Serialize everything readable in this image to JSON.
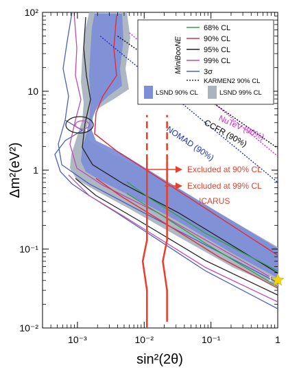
{
  "chart_data": {
    "type": "line",
    "xscale": "log",
    "yscale": "log",
    "xlim": [
      0.0003,
      1
    ],
    "ylim": [
      0.01,
      100
    ],
    "xlabel": "sin²(2θ)",
    "ylabel": "Δm²(eV²)",
    "x_ticks": [
      "10⁻³",
      "10⁻²",
      "10⁻¹",
      "1"
    ],
    "y_ticks": [
      "10⁻²",
      "10⁻¹",
      "1",
      "10",
      "10²"
    ],
    "legend": {
      "group_label": "MiniBooNE",
      "entries": [
        {
          "label": "68% CL",
          "color": "#2e9e4a"
        },
        {
          "label": "90% CL",
          "color": "#d6334a"
        },
        {
          "label": "95% CL",
          "color": "#222222"
        },
        {
          "label": "99% CL",
          "color": "#c04aa8"
        },
        {
          "label": "3σ",
          "color": "#4a5fc0"
        },
        {
          "label": "KARMEN2 90% CL",
          "color": "#000000",
          "dashed": true
        }
      ],
      "boxes": [
        {
          "label": "LSND 90% CL",
          "color": "#7d8fd6"
        },
        {
          "label": "LSND 99% CL",
          "color": "#a9b4c0"
        }
      ]
    },
    "limits": [
      {
        "name": "NuTeV (90%)",
        "color": "#e020e0",
        "x": [
          0.006,
          1
        ],
        "y": [
          55,
          1.5
        ]
      },
      {
        "name": "CCFR (90%)",
        "color": "#000000",
        "x": [
          0.004,
          1
        ],
        "y": [
          50,
          1.9
        ]
      },
      {
        "name": "NOMAD (90%)",
        "color": "#1a2fc0",
        "x": [
          0.0022,
          1
        ],
        "y": [
          50,
          0.7
        ]
      }
    ],
    "icarus": {
      "label": "ICARUS",
      "excluded_90": "Excluded at 90% CL",
      "excluded_99": "Excluded at 99% CL",
      "color": "#e8402a",
      "line_90": [
        [
          0.011,
          0.01
        ],
        [
          0.011,
          0.03
        ],
        [
          0.0095,
          0.07
        ],
        [
          0.011,
          0.13
        ],
        [
          0.011,
          1.3
        ]
      ],
      "line_99": [
        [
          0.022,
          0.012
        ],
        [
          0.022,
          0.03
        ],
        [
          0.019,
          0.07
        ],
        [
          0.022,
          0.13
        ],
        [
          0.022,
          1.3
        ]
      ],
      "dashed_90": [
        [
          0.011,
          1.3
        ],
        [
          0.011,
          5
        ]
      ],
      "dashed_99": [
        [
          0.022,
          1.3
        ],
        [
          0.022,
          5
        ]
      ]
    },
    "bestfit_marker": {
      "label": "1",
      "x": 1,
      "y": 0.04,
      "color": "#f5d400"
    }
  }
}
